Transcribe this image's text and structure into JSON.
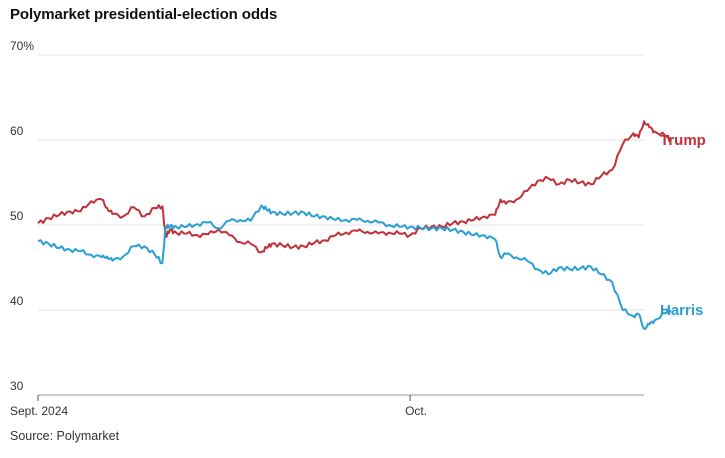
{
  "chart_data": {
    "type": "line",
    "title": "Polymarket presidential-election odds",
    "source": "Source: Polymarket",
    "ylim": [
      30,
      70
    ],
    "yticks": [
      {
        "value": 70,
        "label": "70%"
      },
      {
        "value": 60,
        "label": "60"
      },
      {
        "value": 50,
        "label": "50"
      },
      {
        "value": 40,
        "label": "40"
      },
      {
        "value": 30,
        "label": "30"
      }
    ],
    "xlim": [
      0,
      57
    ],
    "xticks": [
      {
        "value": 0,
        "label": "Sept. 2024"
      },
      {
        "value": 35,
        "label": "Oct."
      }
    ],
    "series": [
      {
        "name": "Trump",
        "color": "#c0313a",
        "points": [
          [
            0,
            50.2
          ],
          [
            1,
            50.8
          ],
          [
            2,
            51.2
          ],
          [
            3,
            51.6
          ],
          [
            4,
            51.6
          ],
          [
            5,
            52.8
          ],
          [
            6,
            53.0
          ],
          [
            6.5,
            52.0
          ],
          [
            7,
            51.3
          ],
          [
            8,
            51.0
          ],
          [
            9,
            52.1
          ],
          [
            10,
            51.0
          ],
          [
            11,
            52.0
          ],
          [
            11.7,
            52.2
          ],
          [
            12,
            48.6
          ],
          [
            12.4,
            49.4
          ],
          [
            13,
            49.1
          ],
          [
            14,
            49.0
          ],
          [
            15,
            48.8
          ],
          [
            16,
            48.9
          ],
          [
            17,
            49.5
          ],
          [
            18,
            48.8
          ],
          [
            19,
            48.0
          ],
          [
            20,
            47.8
          ],
          [
            21,
            46.8
          ],
          [
            21.5,
            47.3
          ],
          [
            22,
            47.8
          ],
          [
            23,
            47.6
          ],
          [
            24,
            47.4
          ],
          [
            25,
            47.5
          ],
          [
            26,
            47.9
          ],
          [
            27,
            48.2
          ],
          [
            28,
            48.8
          ],
          [
            29,
            49.1
          ],
          [
            30,
            49.3
          ],
          [
            31,
            49.2
          ],
          [
            32,
            49.0
          ],
          [
            33,
            49.1
          ],
          [
            34,
            49.0
          ],
          [
            35,
            48.8
          ],
          [
            36,
            49.6
          ],
          [
            37,
            49.8
          ],
          [
            38,
            49.8
          ],
          [
            39,
            50.2
          ],
          [
            40,
            50.4
          ],
          [
            41,
            50.6
          ],
          [
            42,
            51.0
          ],
          [
            43,
            51.2
          ],
          [
            43.5,
            53.0
          ],
          [
            44,
            52.5
          ],
          [
            45,
            53.0
          ],
          [
            46,
            54.0
          ],
          [
            47,
            55.2
          ],
          [
            48,
            55.5
          ],
          [
            49,
            54.8
          ],
          [
            50,
            55.3
          ],
          [
            51,
            55.0
          ],
          [
            52,
            54.8
          ],
          [
            53,
            55.8
          ],
          [
            54,
            56.5
          ],
          [
            55,
            59.5
          ],
          [
            56,
            60.8
          ],
          [
            56.5,
            60.3
          ],
          [
            57,
            62.2
          ],
          [
            57.5,
            61.5
          ],
          [
            58,
            61.0
          ],
          [
            59,
            60.5
          ],
          [
            59.5,
            60.0
          ]
        ]
      },
      {
        "name": "Harris",
        "color": "#2a9fd6",
        "points": [
          [
            0,
            48.1
          ],
          [
            1,
            47.8
          ],
          [
            2,
            47.3
          ],
          [
            3,
            47.1
          ],
          [
            4,
            46.9
          ],
          [
            5,
            46.5
          ],
          [
            6,
            46.2
          ],
          [
            6.5,
            46.3
          ],
          [
            7,
            45.8
          ],
          [
            8,
            46.3
          ],
          [
            9,
            47.5
          ],
          [
            10,
            47.5
          ],
          [
            11,
            46.5
          ],
          [
            11.7,
            45.5
          ],
          [
            12,
            49.8
          ],
          [
            12.4,
            49.8
          ],
          [
            13,
            49.8
          ],
          [
            14,
            49.8
          ],
          [
            15,
            50.1
          ],
          [
            16,
            50.3
          ],
          [
            17,
            49.6
          ],
          [
            18,
            50.5
          ],
          [
            19,
            50.6
          ],
          [
            20,
            50.5
          ],
          [
            21,
            52.3
          ],
          [
            21.5,
            51.8
          ],
          [
            22,
            51.5
          ],
          [
            23,
            51.3
          ],
          [
            24,
            51.4
          ],
          [
            25,
            51.5
          ],
          [
            26,
            51.0
          ],
          [
            27,
            51.0
          ],
          [
            28,
            50.6
          ],
          [
            29,
            50.6
          ],
          [
            30,
            50.6
          ],
          [
            31,
            50.5
          ],
          [
            32,
            50.3
          ],
          [
            33,
            50.0
          ],
          [
            34,
            49.8
          ],
          [
            35,
            49.8
          ],
          [
            36,
            49.6
          ],
          [
            37,
            49.6
          ],
          [
            38,
            49.6
          ],
          [
            39,
            49.4
          ],
          [
            40,
            49.2
          ],
          [
            41,
            48.8
          ],
          [
            42,
            48.8
          ],
          [
            43,
            48.3
          ],
          [
            43.5,
            46.2
          ],
          [
            44,
            46.6
          ],
          [
            45,
            46.2
          ],
          [
            46,
            45.8
          ],
          [
            47,
            44.8
          ],
          [
            48,
            44.2
          ],
          [
            49,
            45.0
          ],
          [
            50,
            44.8
          ],
          [
            51,
            44.9
          ],
          [
            52,
            45.1
          ],
          [
            53,
            44.2
          ],
          [
            54,
            43.3
          ],
          [
            55,
            40.0
          ],
          [
            56,
            39.3
          ],
          [
            56.5,
            39.5
          ],
          [
            57,
            37.8
          ],
          [
            57.5,
            38.3
          ],
          [
            58,
            38.8
          ],
          [
            59,
            39.6
          ],
          [
            59.5,
            40.0
          ]
        ]
      }
    ]
  }
}
